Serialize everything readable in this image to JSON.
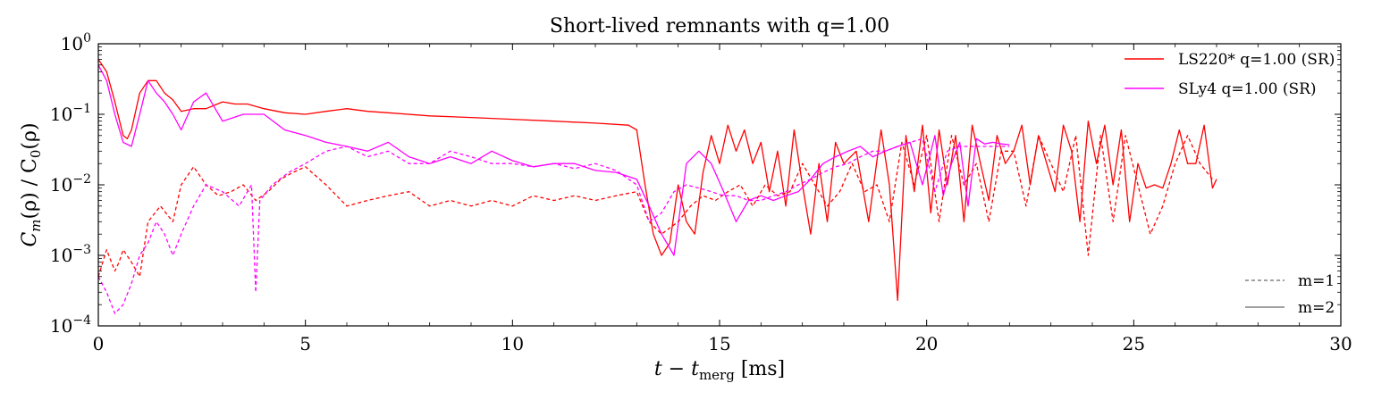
{
  "chart_data": {
    "type": "line",
    "title": "Short-lived remnants with q=1.00",
    "xlabel": "t − t_merg [ms]",
    "xlabel_main": "t − t",
    "xlabel_sub": "merg",
    "xlabel_unit": " [ms]",
    "ylabel": "C_m(ρ) / C_0(ρ)",
    "ylabel_parts": [
      "C",
      "m",
      "(ρ) / C",
      "0",
      "(ρ)"
    ],
    "xlim": [
      0,
      30
    ],
    "ylim": [
      0.0001,
      1
    ],
    "yscale": "log",
    "xticks": [
      0,
      5,
      10,
      15,
      20,
      25,
      30
    ],
    "xtick_labels": [
      "0",
      "5",
      "10",
      "15",
      "20",
      "25",
      "30"
    ],
    "yticks": [
      0.0001,
      0.001,
      0.01,
      0.1,
      1
    ],
    "ytick_labels": [
      {
        "base": "10",
        "exp": "−4"
      },
      {
        "base": "10",
        "exp": "−3"
      },
      {
        "base": "10",
        "exp": "−2"
      },
      {
        "base": "10",
        "exp": "−1"
      },
      {
        "base": "10",
        "exp": "0"
      }
    ],
    "grid": false,
    "legend_top": {
      "placement": "top-right",
      "entries": [
        {
          "label": "LS220* q=1.00 (SR)",
          "color": "#ff0000",
          "style": "solid"
        },
        {
          "label": "SLy4 q=1.00 (SR)",
          "color": "#ff00ff",
          "style": "solid"
        }
      ]
    },
    "legend_bottom": {
      "placement": "bottom-right",
      "entries": [
        {
          "label": "m=1",
          "color": "#808080",
          "style": "dashed"
        },
        {
          "label": "m=2",
          "color": "#808080",
          "style": "solid"
        }
      ]
    },
    "series": [
      {
        "name": "LS220* q=1.00 (SR)",
        "mode": "m=2",
        "color": "#ff0000",
        "style": "solid",
        "x": [
          0,
          0.2,
          0.4,
          0.6,
          0.7,
          0.8,
          1.0,
          1.2,
          1.4,
          1.6,
          1.8,
          2.0,
          2.3,
          2.6,
          3.0,
          3.3,
          3.6,
          4.0,
          4.5,
          5.0,
          5.5,
          6.0,
          6.5,
          7.0,
          8.0,
          9.0,
          10.0,
          11.0,
          12.0,
          12.8,
          13.0,
          13.2,
          13.4,
          13.6,
          13.8,
          14.0,
          14.2,
          14.4,
          14.6,
          14.8,
          15.0,
          15.2,
          15.4,
          15.6,
          15.8,
          16.0,
          16.2,
          16.4,
          16.6,
          16.8,
          17.0,
          17.2,
          17.4,
          17.6,
          17.8,
          18.0,
          18.3,
          18.6,
          18.9,
          19.1,
          19.3,
          19.5,
          19.7,
          19.9,
          20.1,
          20.3,
          20.5,
          20.7,
          20.9,
          21.1,
          21.3,
          21.5,
          21.7,
          21.9,
          22.1,
          22.3,
          22.5,
          22.7,
          22.9,
          23.1,
          23.3,
          23.5,
          23.7,
          23.9,
          24.1,
          24.3,
          24.5,
          24.7,
          24.9,
          25.1,
          25.3,
          25.5,
          25.7,
          25.9,
          26.1,
          26.3,
          26.5,
          26.7,
          26.9,
          27.0
        ],
        "y": [
          0.6,
          0.4,
          0.15,
          0.05,
          0.045,
          0.06,
          0.2,
          0.3,
          0.3,
          0.2,
          0.16,
          0.11,
          0.12,
          0.12,
          0.15,
          0.14,
          0.14,
          0.12,
          0.105,
          0.1,
          0.11,
          0.12,
          0.11,
          0.105,
          0.095,
          0.09,
          0.085,
          0.08,
          0.075,
          0.07,
          0.06,
          0.01,
          0.002,
          0.001,
          0.0015,
          0.01,
          0.003,
          0.002,
          0.015,
          0.05,
          0.02,
          0.07,
          0.03,
          0.06,
          0.02,
          0.04,
          0.008,
          0.03,
          0.005,
          0.06,
          0.01,
          0.002,
          0.02,
          0.003,
          0.04,
          0.02,
          0.03,
          0.003,
          0.06,
          0.01,
          0.00023,
          0.05,
          0.008,
          0.07,
          0.004,
          0.06,
          0.01,
          0.05,
          0.003,
          0.07,
          0.02,
          0.006,
          0.05,
          0.02,
          0.03,
          0.07,
          0.01,
          0.05,
          0.02,
          0.008,
          0.07,
          0.03,
          0.003,
          0.08,
          0.02,
          0.07,
          0.01,
          0.06,
          0.003,
          0.02,
          0.009,
          0.01,
          0.009,
          0.02,
          0.06,
          0.02,
          0.02,
          0.07,
          0.009,
          0.012
        ]
      },
      {
        "name": "SLy4 q=1.00 (SR)",
        "mode": "m=2",
        "color": "#ff00ff",
        "style": "solid",
        "x": [
          0,
          0.2,
          0.4,
          0.6,
          0.8,
          1.0,
          1.2,
          1.4,
          1.6,
          1.8,
          2.0,
          2.3,
          2.6,
          3.0,
          3.5,
          4.0,
          4.5,
          5.0,
          5.5,
          6.0,
          6.5,
          7.0,
          7.5,
          8.0,
          8.5,
          9.0,
          9.5,
          10.0,
          10.5,
          11.0,
          11.5,
          12.0,
          12.5,
          13.0,
          13.3,
          13.6,
          13.9,
          14.2,
          14.5,
          14.8,
          15.1,
          15.4,
          15.7,
          16.0,
          16.3,
          16.6,
          16.9,
          17.2,
          17.5,
          17.8,
          18.1,
          18.4,
          18.7,
          19.0,
          19.3,
          19.6,
          19.9,
          20.2,
          20.4,
          20.6,
          20.8,
          21.0,
          21.2,
          21.4,
          21.6,
          21.8,
          22.0
        ],
        "y": [
          0.5,
          0.3,
          0.1,
          0.04,
          0.035,
          0.1,
          0.3,
          0.2,
          0.15,
          0.1,
          0.06,
          0.15,
          0.2,
          0.08,
          0.1,
          0.1,
          0.06,
          0.05,
          0.04,
          0.035,
          0.03,
          0.04,
          0.025,
          0.02,
          0.025,
          0.02,
          0.03,
          0.022,
          0.018,
          0.02,
          0.02,
          0.016,
          0.015,
          0.012,
          0.005,
          0.002,
          0.001,
          0.02,
          0.03,
          0.02,
          0.008,
          0.003,
          0.006,
          0.007,
          0.006,
          0.007,
          0.008,
          0.012,
          0.02,
          0.025,
          0.03,
          0.035,
          0.025,
          0.03,
          0.035,
          0.04,
          0.01,
          0.05,
          0.007,
          0.02,
          0.04,
          0.005,
          0.045,
          0.038,
          0.04,
          0.038,
          0.037
        ]
      },
      {
        "name": "LS220* q=1.00 (SR)",
        "mode": "m=1",
        "color": "#ff0000",
        "style": "dashed",
        "x": [
          0,
          0.2,
          0.4,
          0.5,
          0.6,
          0.8,
          1.0,
          1.2,
          1.5,
          1.8,
          2.0,
          2.3,
          2.6,
          2.9,
          3.2,
          3.5,
          3.8,
          4.1,
          4.4,
          4.7,
          5.0,
          5.5,
          6.0,
          6.5,
          7.0,
          7.5,
          8.0,
          8.5,
          9.0,
          9.5,
          10.0,
          10.5,
          11.0,
          11.5,
          12.0,
          12.5,
          13.0,
          13.3,
          13.6,
          14.0,
          14.3,
          14.6,
          14.9,
          15.2,
          15.5,
          15.8,
          16.1,
          16.4,
          16.7,
          17.0,
          17.3,
          17.6,
          17.9,
          18.2,
          18.5,
          18.8,
          19.1,
          19.4,
          19.7,
          20.0,
          20.3,
          20.6,
          20.9,
          21.2,
          21.5,
          21.8,
          22.1,
          22.4,
          22.7,
          23.0,
          23.3,
          23.6,
          23.9,
          24.2,
          24.5,
          24.8,
          25.1,
          25.4,
          25.7,
          26.0,
          26.3,
          26.6,
          26.9
        ],
        "y": [
          0.0005,
          0.0012,
          0.0006,
          0.0008,
          0.0012,
          0.0008,
          0.0005,
          0.003,
          0.005,
          0.003,
          0.01,
          0.018,
          0.01,
          0.007,
          0.008,
          0.01,
          0.006,
          0.008,
          0.012,
          0.015,
          0.018,
          0.01,
          0.005,
          0.006,
          0.007,
          0.008,
          0.005,
          0.006,
          0.005,
          0.006,
          0.005,
          0.007,
          0.006,
          0.007,
          0.006,
          0.007,
          0.008,
          0.003,
          0.002,
          0.003,
          0.005,
          0.007,
          0.006,
          0.008,
          0.01,
          0.005,
          0.01,
          0.007,
          0.008,
          0.02,
          0.01,
          0.005,
          0.008,
          0.02,
          0.008,
          0.01,
          0.003,
          0.04,
          0.01,
          0.05,
          0.003,
          0.05,
          0.01,
          0.02,
          0.003,
          0.03,
          0.03,
          0.005,
          0.05,
          0.02,
          0.008,
          0.05,
          0.001,
          0.05,
          0.003,
          0.05,
          0.01,
          0.002,
          0.005,
          0.02,
          0.05,
          0.02,
          0.012
        ]
      },
      {
        "name": "SLy4 q=1.00 (SR)",
        "mode": "m=1",
        "color": "#ff00ff",
        "style": "dashed",
        "x": [
          0,
          0.2,
          0.4,
          0.6,
          0.8,
          1.0,
          1.2,
          1.4,
          1.6,
          1.8,
          2.0,
          2.3,
          2.6,
          3.0,
          3.4,
          3.7,
          3.8,
          3.9,
          4.2,
          4.6,
          5.0,
          5.5,
          6.0,
          6.5,
          7.0,
          7.5,
          8.0,
          8.5,
          9.0,
          9.5,
          10.0,
          10.5,
          11.0,
          11.5,
          12.0,
          12.5,
          13.0,
          13.3,
          13.6,
          13.9,
          14.2,
          14.5,
          14.8,
          15.1,
          15.4,
          15.7,
          16.0,
          16.3,
          16.6,
          16.9,
          17.2,
          17.5,
          17.8,
          18.1,
          18.4,
          18.7,
          19.0,
          19.3,
          19.6,
          19.9,
          20.2,
          20.5,
          20.8,
          21.1,
          21.4,
          21.7,
          22.0
        ],
        "y": [
          0.0005,
          0.0003,
          0.00015,
          0.0002,
          0.0004,
          0.001,
          0.0015,
          0.003,
          0.002,
          0.001,
          0.002,
          0.005,
          0.01,
          0.008,
          0.005,
          0.01,
          0.0003,
          0.006,
          0.01,
          0.015,
          0.02,
          0.03,
          0.035,
          0.025,
          0.03,
          0.02,
          0.02,
          0.03,
          0.025,
          0.02,
          0.02,
          0.018,
          0.02,
          0.017,
          0.02,
          0.016,
          0.01,
          0.003,
          0.004,
          0.008,
          0.01,
          0.009,
          0.008,
          0.007,
          0.007,
          0.006,
          0.006,
          0.007,
          0.008,
          0.01,
          0.012,
          0.015,
          0.018,
          0.02,
          0.025,
          0.03,
          0.03,
          0.035,
          0.04,
          0.045,
          0.008,
          0.03,
          0.035,
          0.035,
          0.035,
          0.035,
          0.035
        ]
      }
    ]
  }
}
